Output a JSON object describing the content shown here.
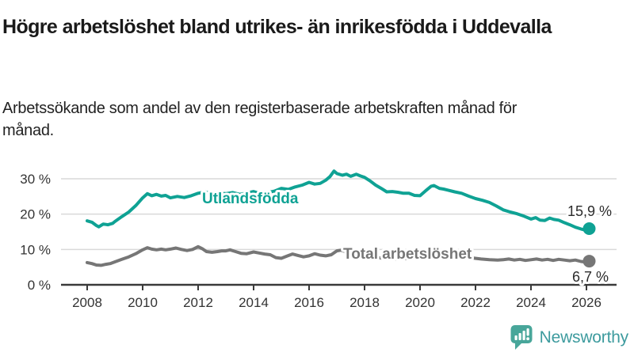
{
  "header": {
    "title": "Högre arbetslöshet bland utrikes- än inrikesfödda i Uddevalla",
    "subtitle": "Arbetssökande som andel av den registerbaserade arbetskraften månad för månad."
  },
  "chart_data": {
    "type": "line",
    "title": "Högre arbetslöshet bland utrikes- än inrikesfödda i Uddevalla",
    "subtitle": "Arbetssökande som andel av den registerbaserade arbetskraften månad för månad.",
    "xlabel": "",
    "ylabel": "",
    "xlim": [
      2007.1,
      2027.1
    ],
    "ylim": [
      0,
      33
    ],
    "grid": "horizontal",
    "legend_position": "inline-labels",
    "x_ticks": [
      2008,
      2010,
      2012,
      2014,
      2016,
      2018,
      2020,
      2022,
      2024,
      2026
    ],
    "x_tick_labels": [
      "2008",
      "2010",
      "2012",
      "2014",
      "2016",
      "2018",
      "2020",
      "2022",
      "2024",
      "2026"
    ],
    "y_ticks": [
      0,
      10,
      20,
      30
    ],
    "y_tick_labels": [
      "0 %",
      "10 %",
      "20 %",
      "30 %"
    ],
    "axis_color": "#3a3a3a",
    "gridline_color": "#d9d9d9",
    "tick_label_color": "#333333",
    "end_label_color": "#2b2b2b",
    "series": [
      {
        "name": "Utlandsfödda",
        "color": "#0fa294",
        "end_label": "15,9 %",
        "last_value": 15.9,
        "points": [
          [
            2008.0,
            18.1
          ],
          [
            2008.17,
            17.7
          ],
          [
            2008.33,
            16.8
          ],
          [
            2008.42,
            16.4
          ],
          [
            2008.58,
            17.2
          ],
          [
            2008.75,
            17.0
          ],
          [
            2008.92,
            17.4
          ],
          [
            2009.0,
            17.9
          ],
          [
            2009.25,
            19.3
          ],
          [
            2009.5,
            20.6
          ],
          [
            2009.75,
            22.4
          ],
          [
            2010.0,
            24.6
          ],
          [
            2010.17,
            25.8
          ],
          [
            2010.33,
            25.2
          ],
          [
            2010.5,
            25.6
          ],
          [
            2010.67,
            25.1
          ],
          [
            2010.83,
            25.3
          ],
          [
            2011.0,
            24.6
          ],
          [
            2011.25,
            25.0
          ],
          [
            2011.5,
            24.7
          ],
          [
            2011.75,
            25.2
          ],
          [
            2012.0,
            25.9
          ],
          [
            2012.25,
            26.3
          ],
          [
            2012.5,
            25.7
          ],
          [
            2012.75,
            25.9
          ],
          [
            2013.0,
            25.8
          ],
          [
            2013.25,
            26.1
          ],
          [
            2013.5,
            25.6
          ],
          [
            2013.75,
            26.0
          ],
          [
            2014.0,
            26.4
          ],
          [
            2014.25,
            25.8
          ],
          [
            2014.5,
            26.1
          ],
          [
            2014.75,
            26.5
          ],
          [
            2015.0,
            27.3
          ],
          [
            2015.25,
            27.0
          ],
          [
            2015.5,
            27.7
          ],
          [
            2015.75,
            28.2
          ],
          [
            2016.0,
            29.0
          ],
          [
            2016.2,
            28.5
          ],
          [
            2016.4,
            28.7
          ],
          [
            2016.6,
            29.6
          ],
          [
            2016.75,
            30.6
          ],
          [
            2016.9,
            32.2
          ],
          [
            2017.0,
            31.5
          ],
          [
            2017.2,
            31.0
          ],
          [
            2017.35,
            31.3
          ],
          [
            2017.5,
            30.7
          ],
          [
            2017.7,
            31.3
          ],
          [
            2017.85,
            30.8
          ],
          [
            2018.0,
            30.4
          ],
          [
            2018.2,
            29.4
          ],
          [
            2018.4,
            28.2
          ],
          [
            2018.6,
            27.3
          ],
          [
            2018.8,
            26.3
          ],
          [
            2019.0,
            26.4
          ],
          [
            2019.2,
            26.2
          ],
          [
            2019.4,
            25.9
          ],
          [
            2019.6,
            25.9
          ],
          [
            2019.8,
            25.3
          ],
          [
            2020.0,
            25.2
          ],
          [
            2020.2,
            26.6
          ],
          [
            2020.4,
            27.9
          ],
          [
            2020.5,
            28.1
          ],
          [
            2020.7,
            27.3
          ],
          [
            2020.85,
            27.1
          ],
          [
            2021.0,
            26.8
          ],
          [
            2021.25,
            26.3
          ],
          [
            2021.5,
            25.9
          ],
          [
            2021.75,
            25.1
          ],
          [
            2022.0,
            24.4
          ],
          [
            2022.25,
            23.9
          ],
          [
            2022.5,
            23.3
          ],
          [
            2022.75,
            22.3
          ],
          [
            2023.0,
            21.2
          ],
          [
            2023.25,
            20.6
          ],
          [
            2023.5,
            20.1
          ],
          [
            2023.75,
            19.4
          ],
          [
            2024.0,
            18.6
          ],
          [
            2024.17,
            19.0
          ],
          [
            2024.33,
            18.3
          ],
          [
            2024.5,
            18.2
          ],
          [
            2024.67,
            18.9
          ],
          [
            2024.83,
            18.5
          ],
          [
            2025.0,
            18.3
          ],
          [
            2025.2,
            17.6
          ],
          [
            2025.4,
            17.0
          ],
          [
            2025.6,
            16.3
          ],
          [
            2025.8,
            15.8
          ],
          [
            2025.95,
            15.5
          ],
          [
            2026.1,
            15.9
          ]
        ]
      },
      {
        "name": "Total arbetslöshet",
        "color": "#767676",
        "end_label": "6,7 %",
        "last_value": 6.7,
        "points": [
          [
            2008.0,
            6.3
          ],
          [
            2008.17,
            6.0
          ],
          [
            2008.33,
            5.6
          ],
          [
            2008.5,
            5.5
          ],
          [
            2008.67,
            5.8
          ],
          [
            2008.83,
            6.0
          ],
          [
            2009.0,
            6.5
          ],
          [
            2009.25,
            7.2
          ],
          [
            2009.5,
            7.9
          ],
          [
            2009.75,
            8.8
          ],
          [
            2010.0,
            9.9
          ],
          [
            2010.17,
            10.5
          ],
          [
            2010.33,
            10.1
          ],
          [
            2010.5,
            9.9
          ],
          [
            2010.67,
            10.1
          ],
          [
            2010.83,
            9.9
          ],
          [
            2011.0,
            10.1
          ],
          [
            2011.2,
            10.4
          ],
          [
            2011.4,
            10.0
          ],
          [
            2011.6,
            9.7
          ],
          [
            2011.8,
            10.0
          ],
          [
            2012.0,
            10.8
          ],
          [
            2012.15,
            10.2
          ],
          [
            2012.3,
            9.4
          ],
          [
            2012.5,
            9.2
          ],
          [
            2012.7,
            9.4
          ],
          [
            2012.85,
            9.6
          ],
          [
            2013.0,
            9.6
          ],
          [
            2013.15,
            9.9
          ],
          [
            2013.35,
            9.4
          ],
          [
            2013.55,
            8.9
          ],
          [
            2013.75,
            8.8
          ],
          [
            2014.0,
            9.3
          ],
          [
            2014.2,
            9.0
          ],
          [
            2014.4,
            8.7
          ],
          [
            2014.6,
            8.5
          ],
          [
            2014.8,
            7.7
          ],
          [
            2015.0,
            7.5
          ],
          [
            2015.2,
            8.1
          ],
          [
            2015.4,
            8.7
          ],
          [
            2015.6,
            8.3
          ],
          [
            2015.8,
            7.9
          ],
          [
            2016.0,
            8.2
          ],
          [
            2016.2,
            8.8
          ],
          [
            2016.4,
            8.4
          ],
          [
            2016.6,
            8.2
          ],
          [
            2016.8,
            8.5
          ],
          [
            2017.0,
            9.6
          ],
          [
            2017.15,
            9.8
          ],
          [
            2017.35,
            9.3
          ],
          [
            2017.6,
            8.9
          ],
          [
            2017.8,
            8.6
          ],
          [
            2018.0,
            8.3
          ],
          [
            2018.3,
            7.9
          ],
          [
            2018.6,
            7.6
          ],
          [
            2018.9,
            7.4
          ],
          [
            2019.2,
            7.3
          ],
          [
            2019.5,
            7.4
          ],
          [
            2019.8,
            7.7
          ],
          [
            2020.0,
            8.1
          ],
          [
            2020.3,
            9.3
          ],
          [
            2020.5,
            9.6
          ],
          [
            2020.8,
            9.3
          ],
          [
            2021.0,
            9.0
          ],
          [
            2021.3,
            8.5
          ],
          [
            2021.6,
            8.0
          ],
          [
            2021.9,
            7.6
          ],
          [
            2022.2,
            7.3
          ],
          [
            2022.5,
            7.1
          ],
          [
            2022.8,
            7.0
          ],
          [
            2023.0,
            7.1
          ],
          [
            2023.2,
            7.3
          ],
          [
            2023.4,
            7.0
          ],
          [
            2023.6,
            7.2
          ],
          [
            2023.8,
            6.9
          ],
          [
            2024.0,
            7.1
          ],
          [
            2024.2,
            7.3
          ],
          [
            2024.4,
            7.0
          ],
          [
            2024.6,
            7.2
          ],
          [
            2024.8,
            6.9
          ],
          [
            2025.0,
            7.2
          ],
          [
            2025.2,
            7.0
          ],
          [
            2025.4,
            6.8
          ],
          [
            2025.6,
            7.0
          ],
          [
            2025.8,
            6.6
          ],
          [
            2026.0,
            6.4
          ],
          [
            2026.1,
            6.7
          ]
        ]
      }
    ]
  },
  "footer": {
    "brand": "Newsworthy",
    "logo_icon": "bar-chart-speech-bubble-icon",
    "brand_text_color": "#3d9b9e",
    "icon_color": "#48a69a"
  }
}
